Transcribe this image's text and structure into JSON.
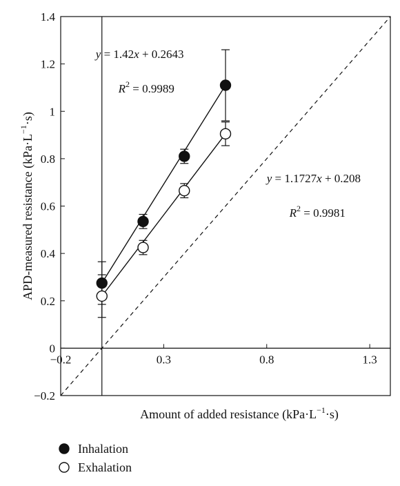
{
  "chart_data": {
    "type": "scatter",
    "xlabel": "Amount of added resistance (kPa·L",
    "xlabel_sup": "−1",
    "xlabel_tail": "·s)",
    "ylabel": "APD-measured resistance (kPa·L",
    "ylabel_sup": "−1",
    "ylabel_tail": "·s)",
    "xlim": [
      -0.2,
      1.4
    ],
    "ylim": [
      -0.2,
      1.4
    ],
    "x_ticks": [
      -0.2,
      0.3,
      0.8,
      1.3
    ],
    "x_tick_labels": [
      "−0.2",
      "0.3",
      "0.8",
      "1.3"
    ],
    "y_ticks": [
      -0.2,
      0,
      0.2,
      0.4,
      0.6,
      0.8,
      1,
      1.2,
      1.4
    ],
    "y_tick_labels": [
      "−0.2",
      "0",
      "0.2",
      "0.4",
      "0.6",
      "0.8",
      "1",
      "1.2",
      "1.4"
    ],
    "grid": false,
    "legend_position": "bottom-left",
    "series": [
      {
        "name": "Inhalation",
        "marker": "filled-circle",
        "x": [
          0,
          0.2,
          0.4,
          0.6
        ],
        "y": [
          0.275,
          0.535,
          0.81,
          1.11
        ],
        "err": [
          0.09,
          0.03,
          0.03,
          0.15
        ]
      },
      {
        "name": "Exhalation",
        "marker": "open-circle",
        "x": [
          0,
          0.2,
          0.4,
          0.6
        ],
        "y": [
          0.22,
          0.425,
          0.665,
          0.905
        ],
        "err": [
          0.09,
          0.03,
          0.03,
          0.05
        ]
      }
    ],
    "fit_lines": [
      {
        "series": "Inhalation",
        "x_range": [
          0,
          0.6
        ],
        "y_range": [
          0.275,
          1.11
        ],
        "style": "solid"
      },
      {
        "series": "Exhalation",
        "x_range": [
          0,
          0.6
        ],
        "y_range": [
          0.22,
          0.905
        ],
        "style": "solid"
      }
    ],
    "identity_line": {
      "x_range": [
        -0.2,
        1.4
      ],
      "y_range": [
        -0.2,
        1.4
      ],
      "style": "dashed"
    },
    "annotations": [
      {
        "id": "eq1",
        "eq_y": "y",
        "eq_eq": " = 1.42",
        "eq_x": "x",
        "eq_rest": " + 0.2643",
        "r_label": "R",
        "r_sup": "2",
        "r_value": " = 0.9989",
        "x": -0.03,
        "y": 1.225,
        "r_x": 0.08,
        "r_y": 1.08
      },
      {
        "id": "eq2",
        "eq_y": "y",
        "eq_eq": " = 1.1727",
        "eq_x": "x",
        "eq_rest": " + 0.208",
        "r_label": "R",
        "r_sup": "2",
        "r_value": " = 0.9981",
        "x": 0.8,
        "y": 0.7,
        "r_x": 0.91,
        "r_y": 0.555
      }
    ]
  }
}
